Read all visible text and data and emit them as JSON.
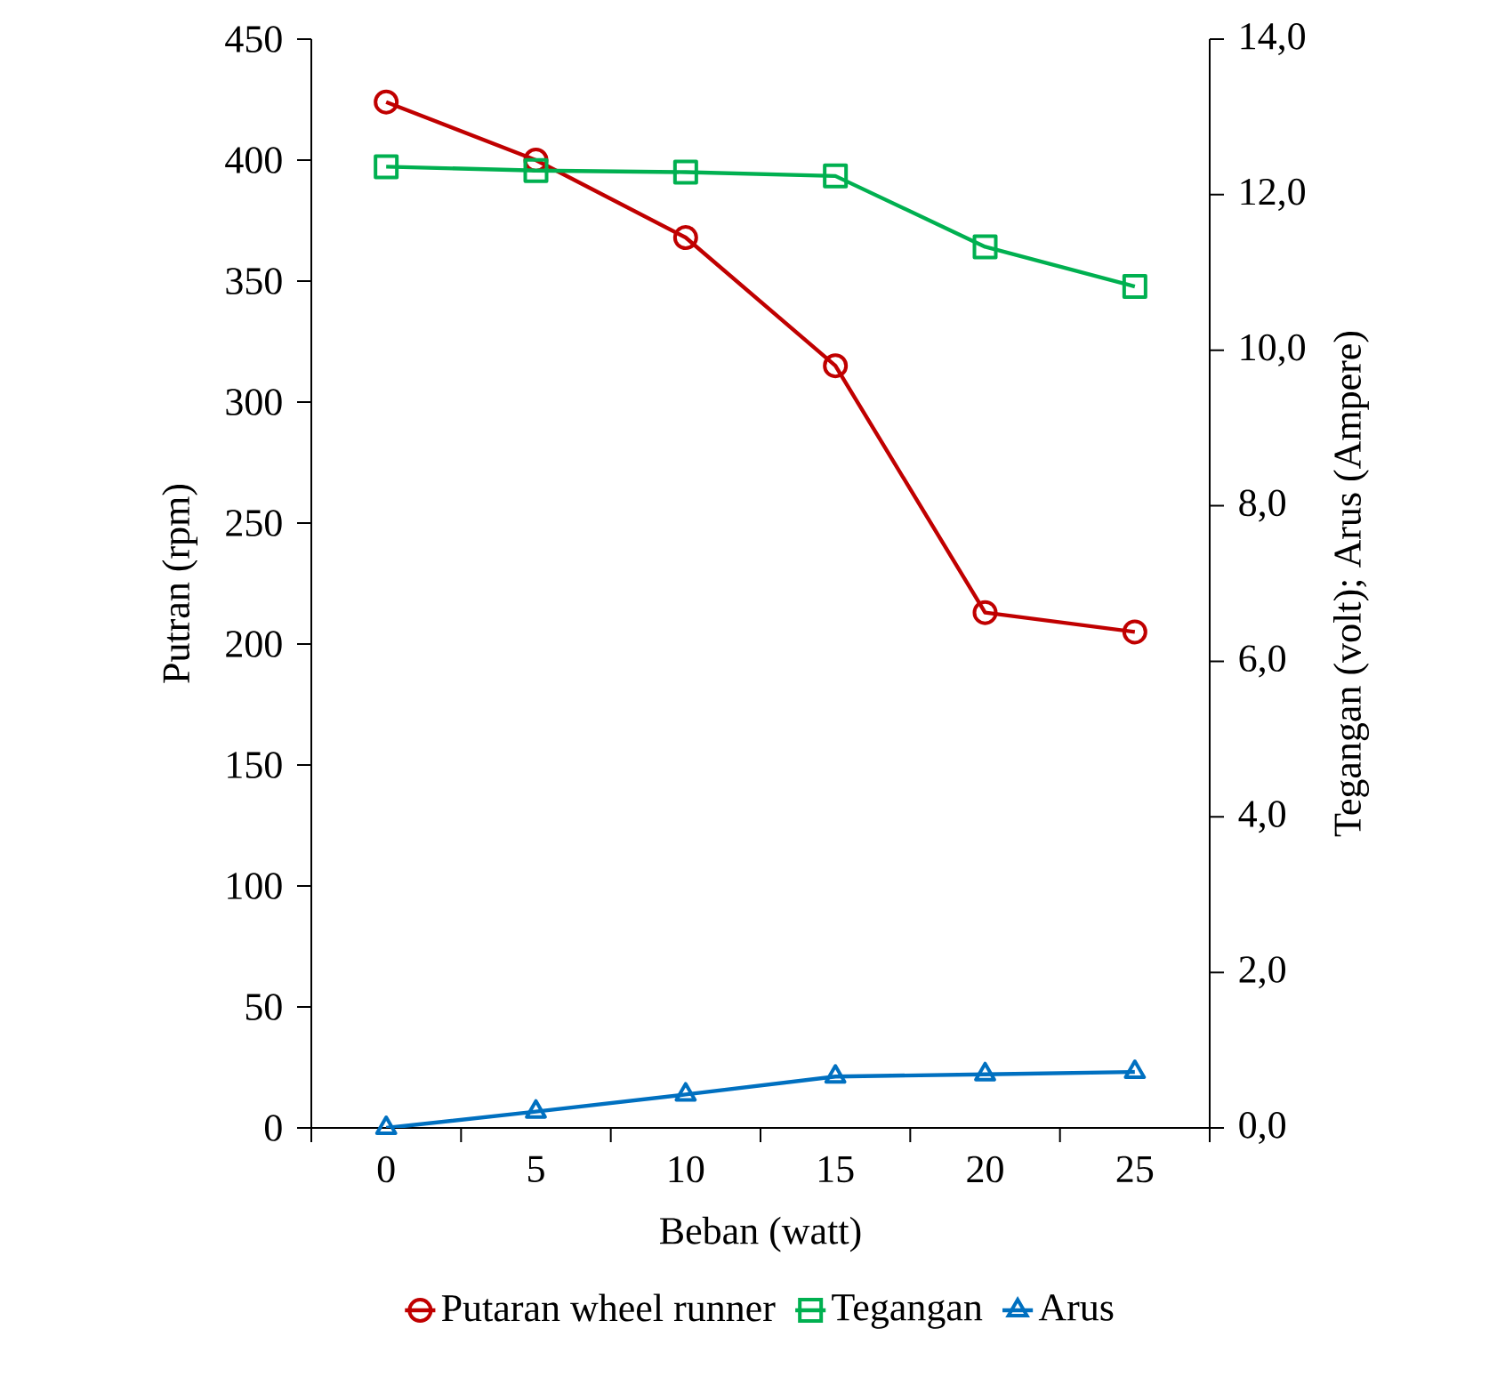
{
  "chart_data": {
    "type": "line",
    "xlabel": "Beban (watt)",
    "ylabel": "Putran (rpm)",
    "y2label": "Tegangan (volt); Arus (Ampere)",
    "categories": [
      "0",
      "5",
      "10",
      "15",
      "20",
      "25"
    ],
    "series": [
      {
        "name": "Putaran wheel runner",
        "color": "#c00000",
        "marker": "circle",
        "values": [
          424,
          400,
          368,
          315,
          213,
          205
        ]
      },
      {
        "name": "Tegangan",
        "color": "#00b050",
        "marker": "square",
        "axis": "y2",
        "values": [
          12.36,
          12.31,
          12.29,
          12.24,
          11.33,
          10.82
        ]
      },
      {
        "name": "Arus",
        "color": "#0070c0",
        "marker": "triangle",
        "axis": "y2",
        "values": [
          0,
          0.21,
          0.43,
          0.66,
          0.69,
          0.72
        ]
      }
    ],
    "ylim": [
      0,
      450
    ],
    "yticks": [
      0,
      50,
      100,
      150,
      200,
      250,
      300,
      350,
      400,
      450
    ],
    "y2lim": [
      0,
      14
    ],
    "y2ticks": [
      {
        "value": 0,
        "label": "0,0"
      },
      {
        "value": 2,
        "label": "2,0"
      },
      {
        "value": 4,
        "label": "4,0"
      },
      {
        "value": 6,
        "label": "6,0"
      },
      {
        "value": 8,
        "label": "8,0"
      },
      {
        "value": 10,
        "label": "10,0"
      },
      {
        "value": 12,
        "label": "12,0"
      },
      {
        "value": 14,
        "label": "14,0"
      }
    ],
    "legend": "bottom"
  }
}
